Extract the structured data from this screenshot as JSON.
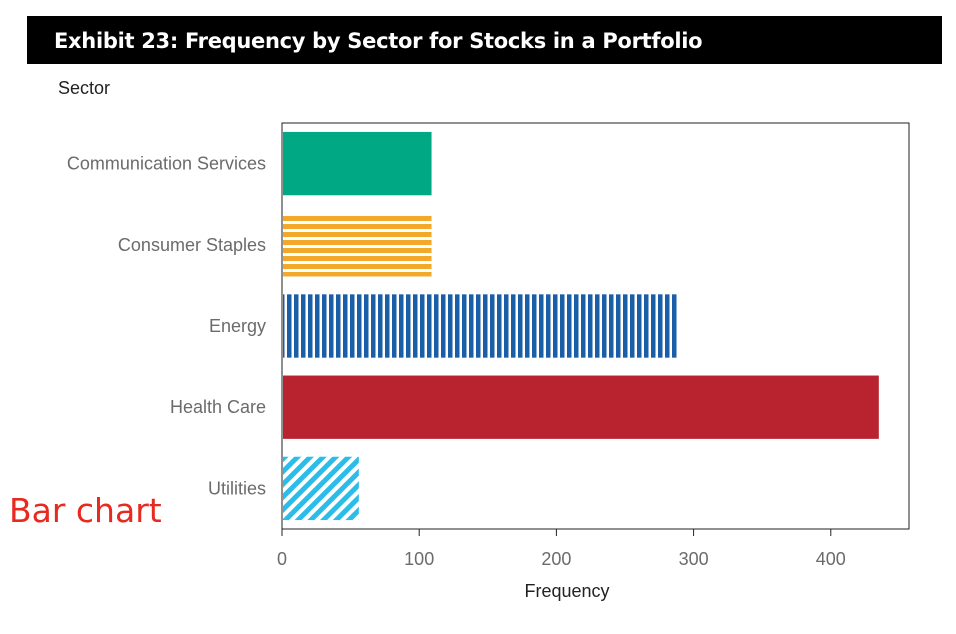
{
  "title": "Exhibit 23: Frequency by Sector for Stocks in a Portfolio",
  "side_note": "Bar chart",
  "chart_data": {
    "type": "bar",
    "orientation": "horizontal",
    "title": "Exhibit 23: Frequency by Sector for Stocks in a Portfolio",
    "xlabel": "Frequency",
    "ylabel": "Sector",
    "categories": [
      "Communication Services",
      "Consumer Staples",
      "Energy",
      "Health Care",
      "Utilities"
    ],
    "values": [
      109,
      109,
      289,
      435,
      56
    ],
    "colors": [
      "#00a884",
      "#f2a92a",
      "#1a5ea8",
      "#b8232f",
      "#2bbde8"
    ],
    "patterns": [
      "solid",
      "horizontal-stripes",
      "vertical-stripes",
      "solid",
      "diagonal-stripes"
    ],
    "xticks": [
      0,
      100,
      200,
      300,
      400
    ],
    "xlim": [
      0,
      457
    ],
    "grid": false,
    "legend": "none"
  }
}
